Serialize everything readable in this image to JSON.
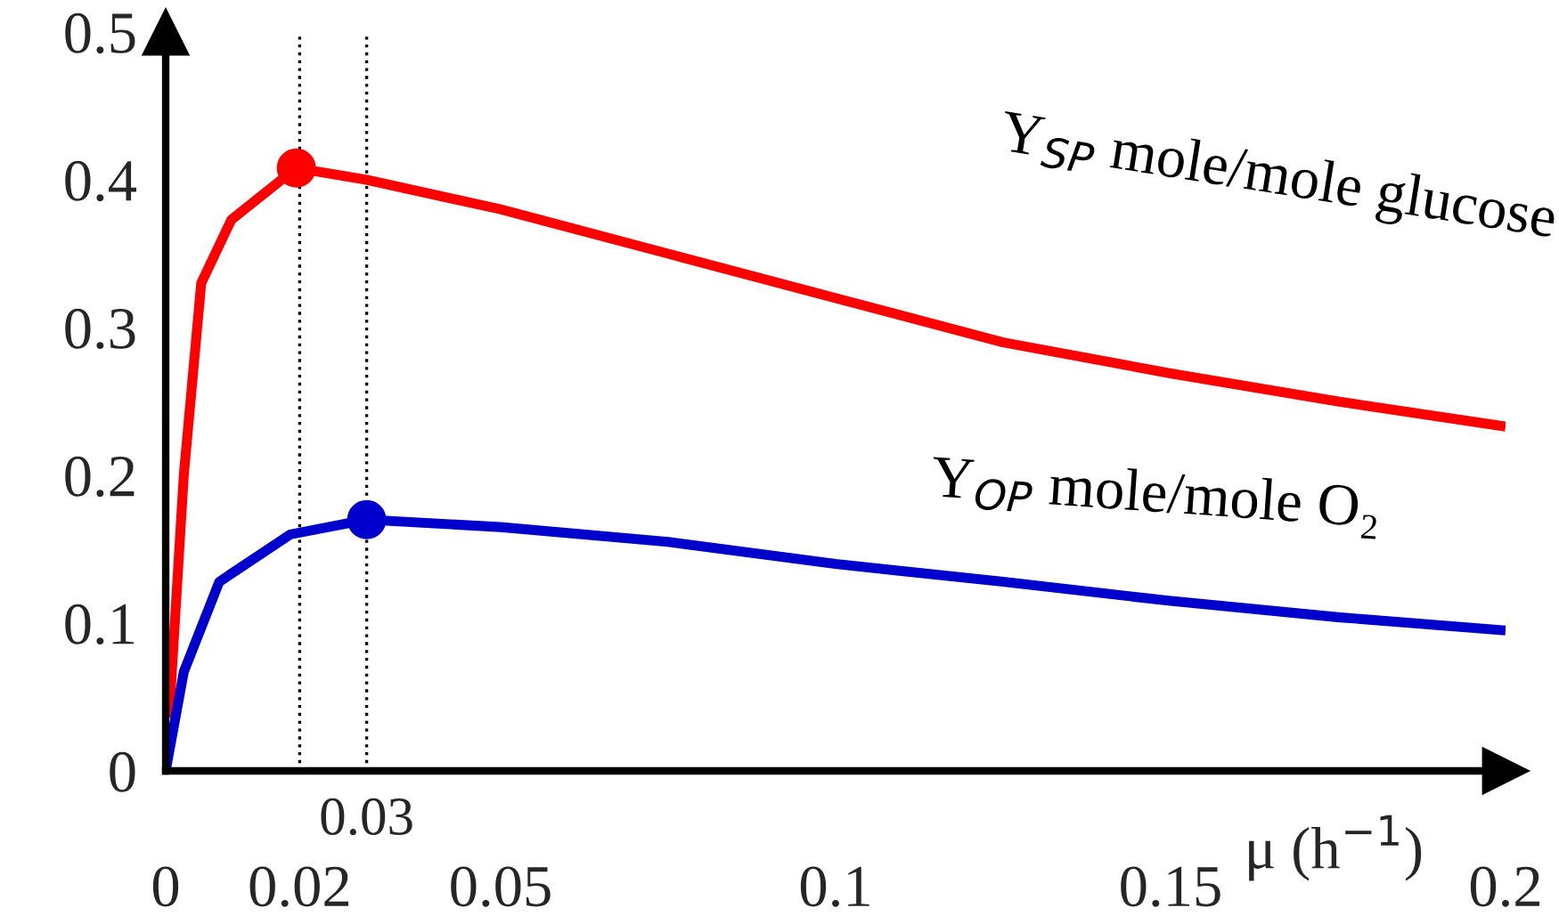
{
  "chart_data": {
    "type": "line",
    "xlabel": "μ (h$^{−1}$)",
    "xlim": [
      0,
      0.2
    ],
    "ylim": [
      0,
      0.5
    ],
    "xticks": [
      0,
      0.02,
      0.05,
      0.1,
      0.15,
      0.2
    ],
    "yticks": [
      0,
      0.1,
      0.2,
      0.3,
      0.4,
      0.5
    ],
    "grid": false,
    "legend": false,
    "line_style": "solid",
    "marker": "none",
    "series": [
      {
        "name": "Y$_{SP}$ mole/mole glucose",
        "color": "#ff0000",
        "x": [
          0.0005,
          0.0027,
          0.0053,
          0.0098,
          0.0195,
          0.03,
          0.05,
          0.075,
          0.1,
          0.125,
          0.15,
          0.175,
          0.2
        ],
        "values": [
          0.036,
          0.2,
          0.33,
          0.373,
          0.408,
          0.4,
          0.38,
          0.35,
          0.32,
          0.29,
          0.269,
          0.25,
          0.233
        ]
      },
      {
        "name": "Y$_{OP}$ mole/mole O₂",
        "color": "#0000cc",
        "x": [
          0,
          0.0027,
          0.008,
          0.0186,
          0.03,
          0.05,
          0.075,
          0.1,
          0.125,
          0.15,
          0.175,
          0.2
        ],
        "values": [
          0,
          0.067,
          0.128,
          0.16,
          0.17,
          0.165,
          0.155,
          0.14,
          0.128,
          0.115,
          0.104,
          0.095
        ]
      },
      {
        "type": "scatter",
        "marker": "circle",
        "color": "#ff0000",
        "x": [
          0.0195
        ],
        "values": [
          0.408
        ]
      },
      {
        "type": "scatter",
        "marker": "circle",
        "color": "#0000cc",
        "x": [
          0.03
        ],
        "values": [
          0.17
        ]
      }
    ],
    "ref_lines": [
      {
        "axis": "x",
        "value": 0.02,
        "label": null,
        "line_style": "dotted",
        "color": "#000000"
      },
      {
        "axis": "x",
        "value": 0.03,
        "label": "0.03",
        "line_style": "dotted",
        "color": "#000000"
      }
    ]
  }
}
